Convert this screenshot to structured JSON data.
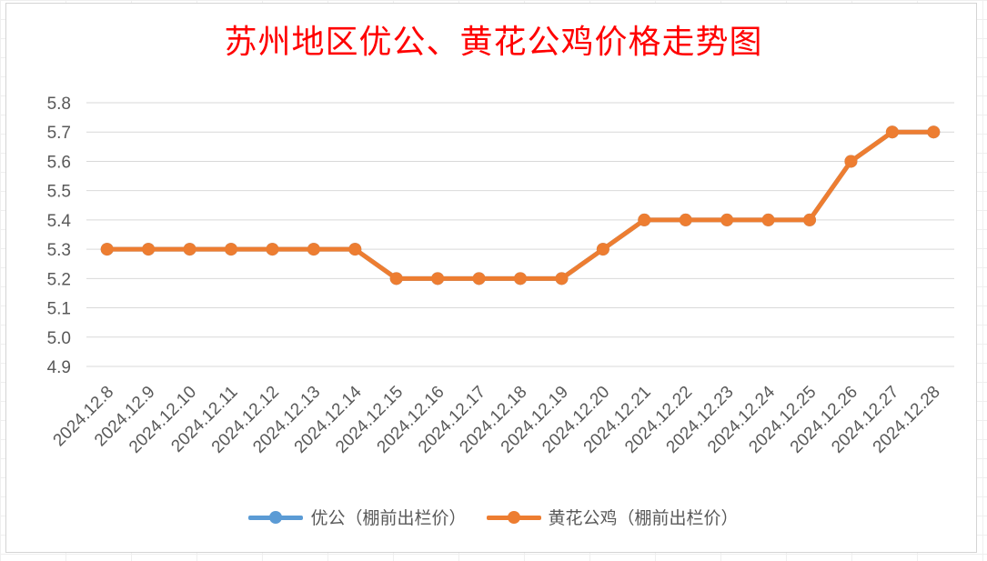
{
  "chart_data": {
    "type": "line",
    "title": "苏州地区优公、黄花公鸡价格走势图",
    "xlabel": "",
    "ylabel": "",
    "ylim": [
      4.9,
      5.8
    ],
    "yticks": [
      "5.8",
      "5.7",
      "5.6",
      "5.5",
      "5.4",
      "5.3",
      "5.2",
      "5.1",
      "5.0",
      "4.9"
    ],
    "grid": true,
    "legend_position": "bottom",
    "categories": [
      "2024.12.8",
      "2024.12.9",
      "2024.12.10",
      "2024.12.11",
      "2024.12.12",
      "2024.12.13",
      "2024.12.14",
      "2024.12.15",
      "2024.12.16",
      "2024.12.17",
      "2024.12.18",
      "2024.12.19",
      "2024.12.20",
      "2024.12.21",
      "2024.12.22",
      "2024.12.23",
      "2024.12.24",
      "2024.12.25",
      "2024.12.26",
      "2024.12.27",
      "2024.12.28"
    ],
    "series": [
      {
        "name": "优公（棚前出栏价）",
        "color": "#5b9bd5",
        "values": [
          5.3,
          5.3,
          5.3,
          5.3,
          5.3,
          5.3,
          5.3,
          5.2,
          5.2,
          5.2,
          5.2,
          5.2,
          5.3,
          5.4,
          5.4,
          5.4,
          5.4,
          5.4,
          5.6,
          5.7,
          5.7
        ]
      },
      {
        "name": "黄花公鸡（棚前出栏价）",
        "color": "#ed7d31",
        "values": [
          5.3,
          5.3,
          5.3,
          5.3,
          5.3,
          5.3,
          5.3,
          5.2,
          5.2,
          5.2,
          5.2,
          5.2,
          5.3,
          5.4,
          5.4,
          5.4,
          5.4,
          5.4,
          5.6,
          5.7,
          5.7
        ]
      }
    ]
  }
}
